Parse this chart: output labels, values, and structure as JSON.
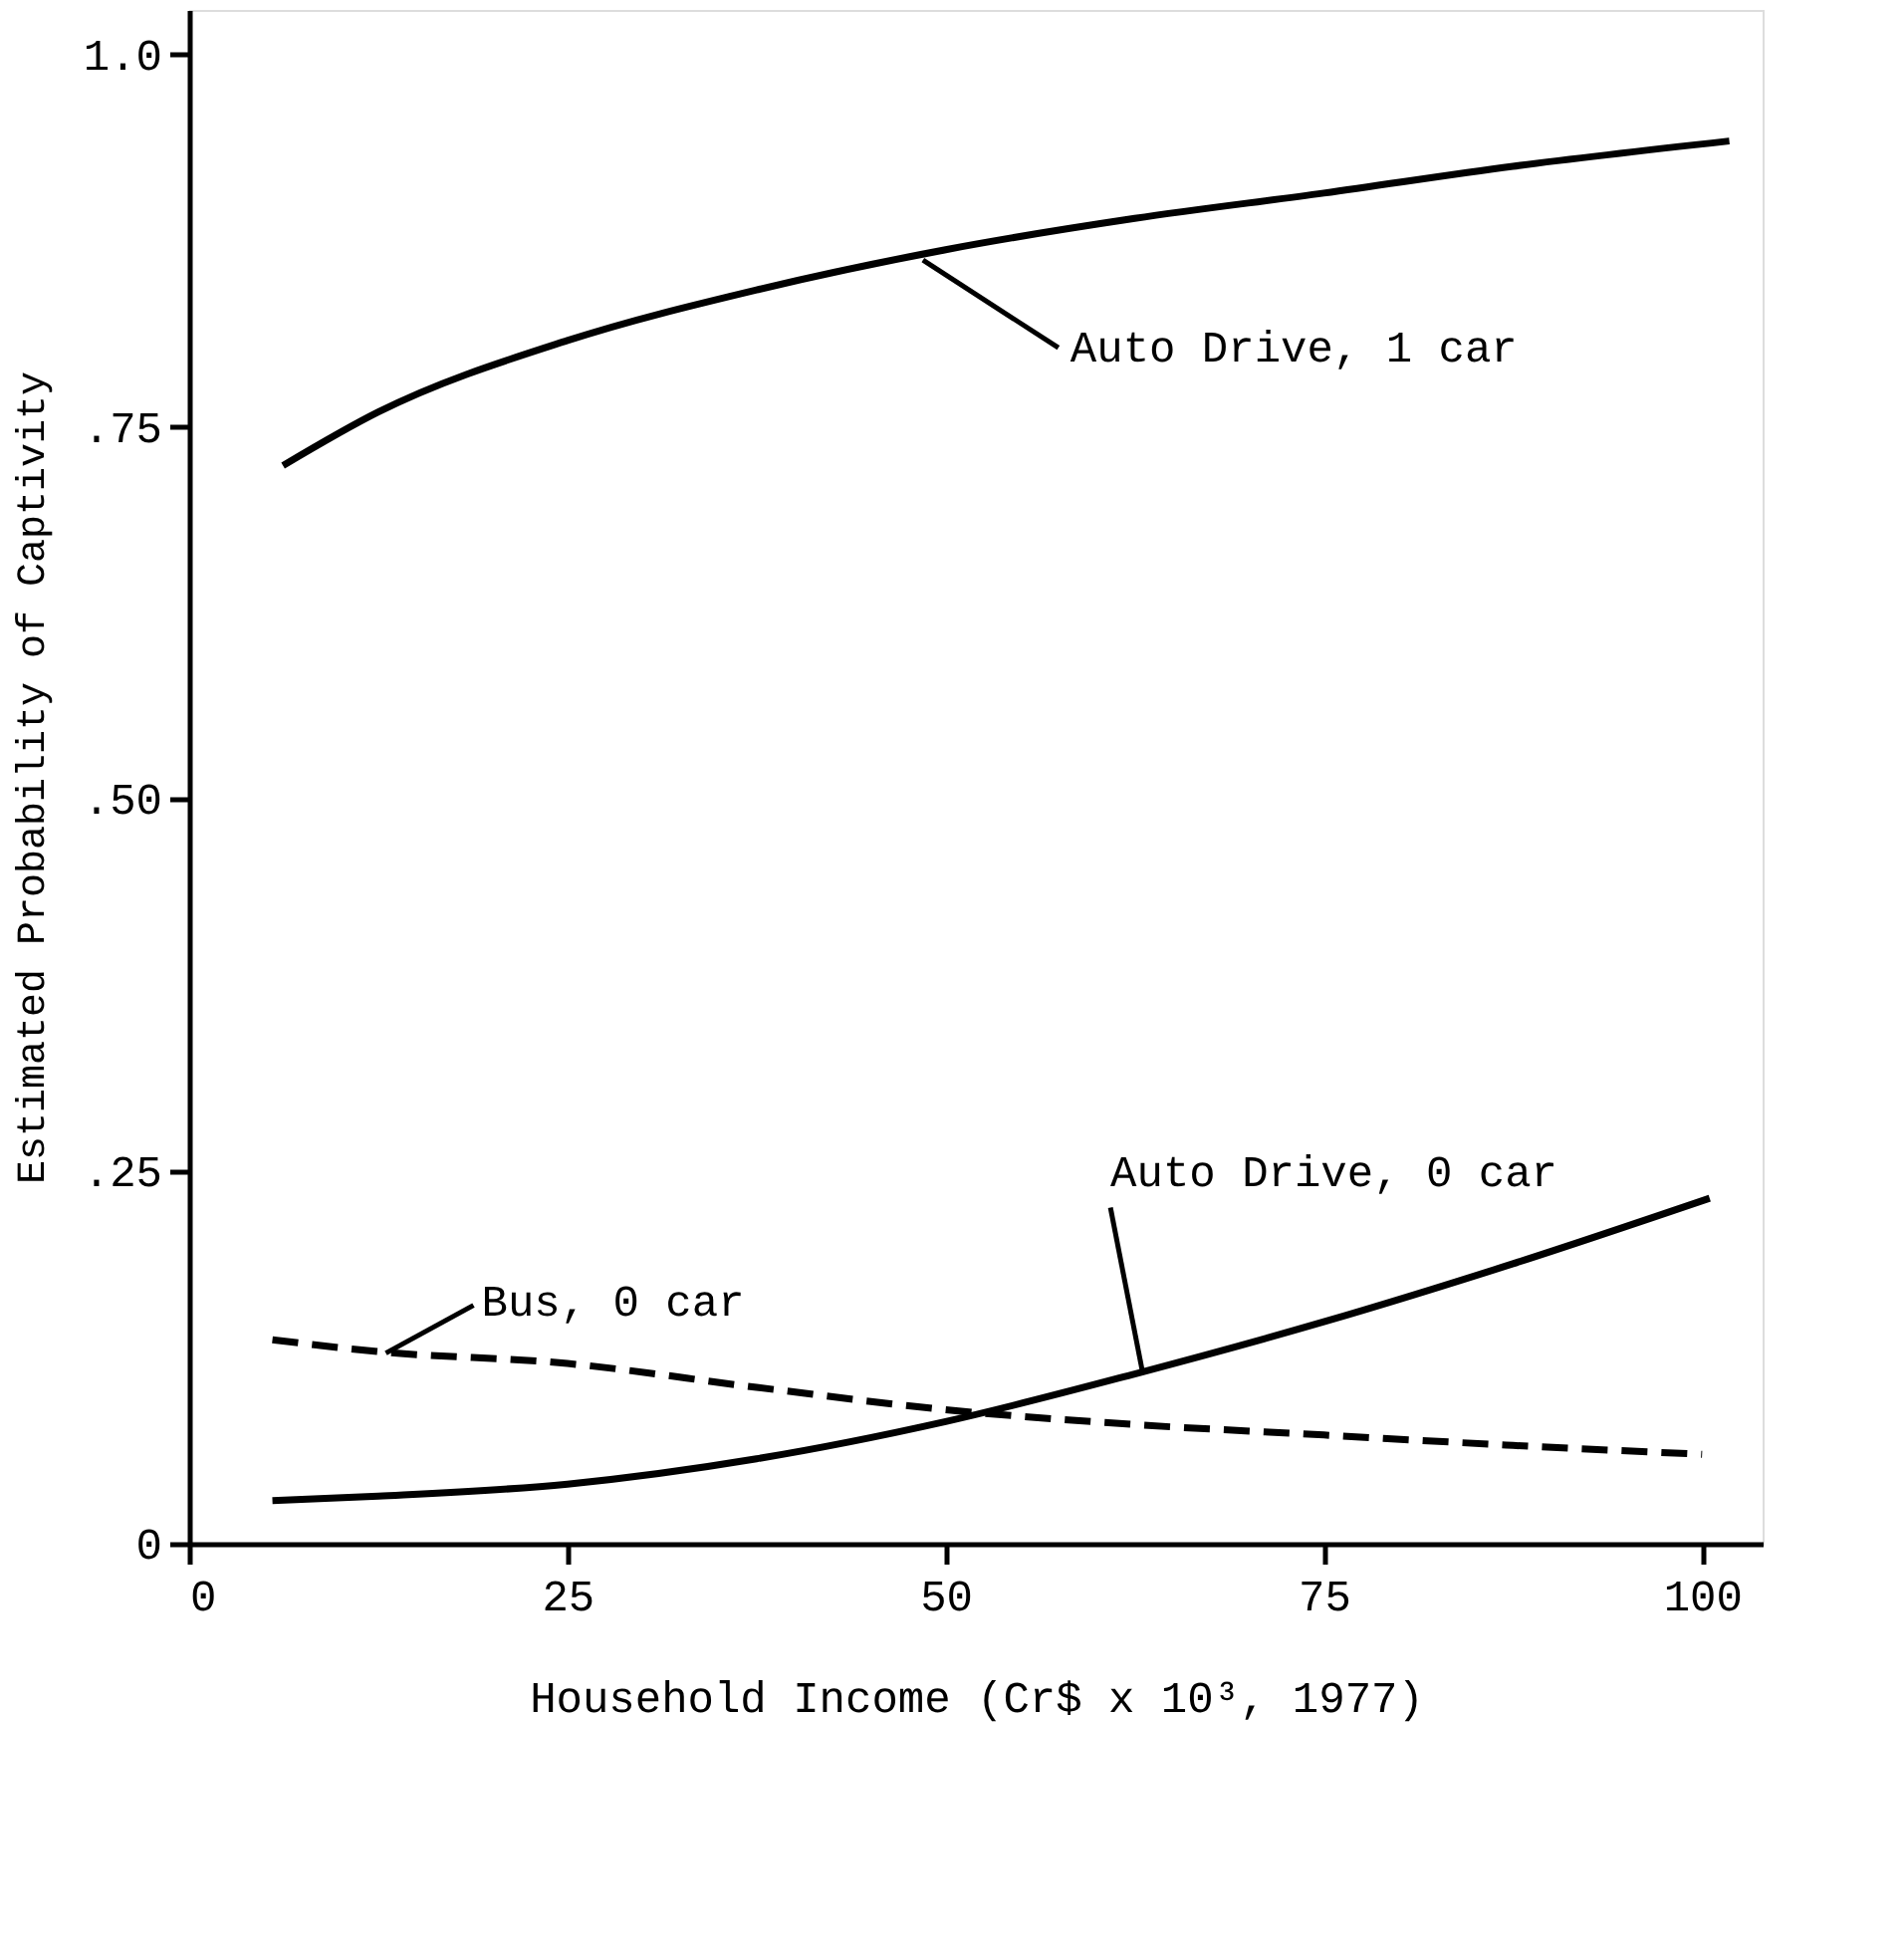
{
  "chart_data": {
    "type": "line",
    "xlabel": "Household Income (Cr$ x 10³, 1977)",
    "ylabel": "Estimated Probability of Captivity",
    "xlim": [
      0,
      104
    ],
    "ylim": [
      0,
      1.03
    ],
    "xticks": [
      0,
      25,
      50,
      75,
      100
    ],
    "yticks": [
      0,
      {
        "value": 0.25,
        "label": ".25"
      },
      {
        "value": 0.5,
        "label": ".50"
      },
      {
        "value": 0.75,
        "label": ".75"
      },
      {
        "value": 1.0,
        "label": "1.0"
      }
    ],
    "grid": false,
    "series": [
      {
        "color": "#000000",
        "line_style": "solid",
        "x": [
          6.2,
          12.5,
          25,
          37.5,
          50,
          62.5,
          75,
          87.5,
          101.8
        ],
        "values": [
          0.724,
          0.76,
          0.808,
          0.842,
          0.869,
          0.89,
          0.907,
          0.925,
          0.942
        ]
      },
      {
        "color": "#000000",
        "line_style": "solid",
        "x": [
          5.5,
          12.5,
          25,
          37.5,
          50,
          62.5,
          75,
          87.5,
          100.5
        ],
        "values": [
          0.029,
          0.032,
          0.04,
          0.057,
          0.082,
          0.114,
          0.149,
          0.188,
          0.232
        ]
      },
      {
        "color": "#000000",
        "line_style": "dashed",
        "x": [
          5.5,
          12.5,
          25,
          37.5,
          50,
          62.5,
          75,
          87.5,
          100
        ],
        "values": [
          0.137,
          0.129,
          0.121,
          0.105,
          0.09,
          0.08,
          0.073,
          0.066,
          0.06
        ]
      }
    ],
    "annotations": [
      {
        "text": "Auto Drive, 1 car",
        "x": 48.5,
        "y": 0.862
      },
      {
        "text": "Bus, 0 car",
        "x": 13,
        "y": 0.128
      },
      {
        "text": "Auto Drive, 0 car",
        "x": 63,
        "y": 0.116
      }
    ]
  }
}
